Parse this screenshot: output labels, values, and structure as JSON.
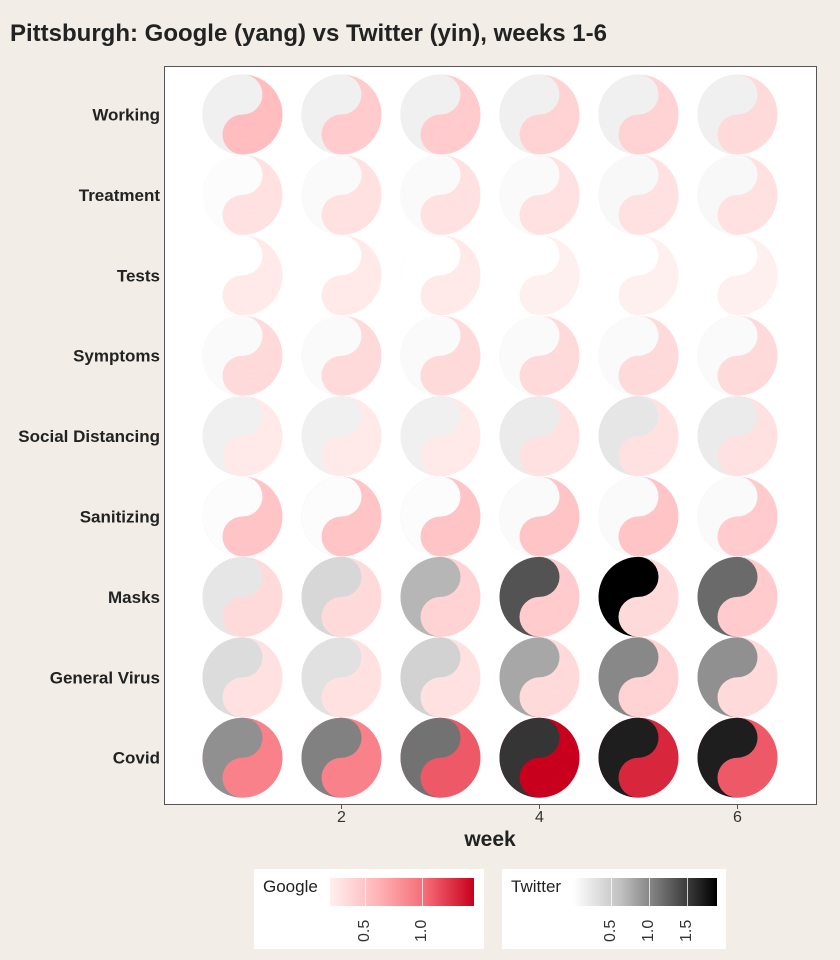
{
  "title": "Pittsburgh: Google (yang) vs Twitter (yin), weeks 1-6",
  "chart_data": {
    "type": "heatmap",
    "glyph": "yin-yang",
    "xlabel": "week",
    "x": [
      1,
      2,
      3,
      4,
      5,
      6
    ],
    "x_ticks": [
      2,
      4,
      6
    ],
    "x_tick_labels": [
      "2",
      "4",
      "6"
    ],
    "categories": [
      "Working",
      "Treatment",
      "Tests",
      "Symptoms",
      "Social Distancing",
      "Sanitizing",
      "Masks",
      "General Virus",
      "Covid"
    ],
    "series": [
      {
        "name": "Google",
        "values": [
          [
            0.55,
            0.45,
            0.45,
            0.4,
            0.4,
            0.35
          ],
          [
            0.3,
            0.3,
            0.3,
            0.3,
            0.3,
            0.3
          ],
          [
            0.25,
            0.25,
            0.25,
            0.2,
            0.2,
            0.2
          ],
          [
            0.35,
            0.35,
            0.35,
            0.35,
            0.35,
            0.35
          ],
          [
            0.25,
            0.25,
            0.25,
            0.3,
            0.3,
            0.3
          ],
          [
            0.5,
            0.5,
            0.5,
            0.5,
            0.5,
            0.45
          ],
          [
            0.35,
            0.35,
            0.4,
            0.45,
            0.35,
            0.45
          ],
          [
            0.3,
            0.3,
            0.3,
            0.35,
            0.4,
            0.35
          ],
          [
            0.9,
            0.9,
            1.1,
            1.45,
            1.3,
            1.1
          ]
        ]
      },
      {
        "name": "Twitter",
        "values": [
          [
            0.15,
            0.15,
            0.15,
            0.15,
            0.15,
            0.15
          ],
          [
            0.03,
            0.05,
            0.05,
            0.05,
            0.07,
            0.07
          ],
          [
            0.0,
            0.0,
            0.0,
            0.0,
            0.0,
            0.0
          ],
          [
            0.05,
            0.05,
            0.05,
            0.05,
            0.05,
            0.05
          ],
          [
            0.15,
            0.15,
            0.15,
            0.2,
            0.25,
            0.2
          ],
          [
            0.03,
            0.03,
            0.03,
            0.05,
            0.05,
            0.05
          ],
          [
            0.25,
            0.4,
            0.7,
            1.35,
            1.9,
            1.2
          ],
          [
            0.35,
            0.3,
            0.45,
            0.8,
            1.0,
            0.95
          ],
          [
            0.95,
            1.05,
            1.15,
            1.55,
            1.7,
            1.7
          ]
        ]
      }
    ],
    "legend": [
      {
        "name": "Google",
        "ticks": [
          0.5,
          1.0
        ],
        "tick_labels": [
          "0.5",
          "1.0"
        ],
        "range": [
          0.2,
          1.45
        ],
        "colors": [
          "#fff0f0",
          "#ffb3b6",
          "#f56a75",
          "#c8001e"
        ]
      },
      {
        "name": "Twitter",
        "ticks": [
          0.5,
          1.0,
          1.5
        ],
        "tick_labels": [
          "0.5",
          "1.0",
          "1.5"
        ],
        "range": [
          0.0,
          1.9
        ],
        "colors": [
          "#ffffff",
          "#c0c0c0",
          "#606060",
          "#000000"
        ]
      }
    ],
    "legend_position": "bottom",
    "grid": false
  }
}
